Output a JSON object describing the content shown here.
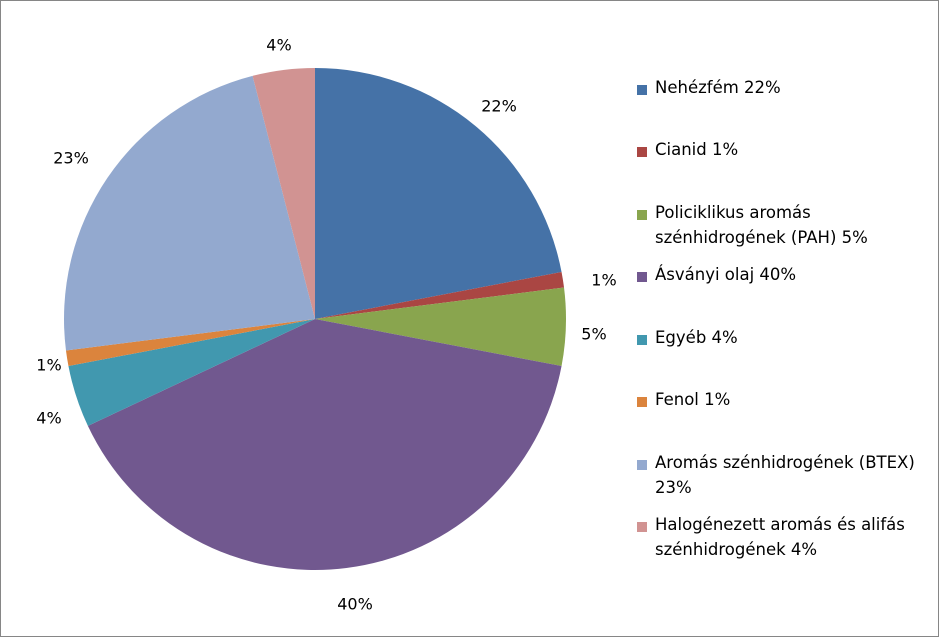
{
  "chart_data": {
    "type": "pie",
    "start_angle_deg": 0,
    "direction": "clockwise",
    "slices": [
      {
        "name": "Nehézfém 22%",
        "value": 22,
        "label": "22%",
        "color": "#4572A7"
      },
      {
        "name": "Cianid 1%",
        "value": 1,
        "label": "1%",
        "color": "#AA4643"
      },
      {
        "name": "Policiklikus aromás szénhidrogének (PAH) 5%",
        "value": 5,
        "label": "5%",
        "color": "#89A54E"
      },
      {
        "name": "Ásványi olaj 40%",
        "value": 40,
        "label": "40%",
        "color": "#71588F"
      },
      {
        "name": "Egyéb 4%",
        "value": 4,
        "label": "4%",
        "color": "#4198AF"
      },
      {
        "name": "Fenol 1%",
        "value": 1,
        "label": "1%",
        "color": "#DB843D"
      },
      {
        "name": "Aromás szénhidrogének (BTEX) 23%",
        "value": 23,
        "label": "23%",
        "color": "#93A9CF"
      },
      {
        "name": "Halogénezett aromás és alifás szénhidrogének 4%",
        "value": 4,
        "label": "4%",
        "color": "#D19392"
      }
    ],
    "legend_placement": "right"
  }
}
